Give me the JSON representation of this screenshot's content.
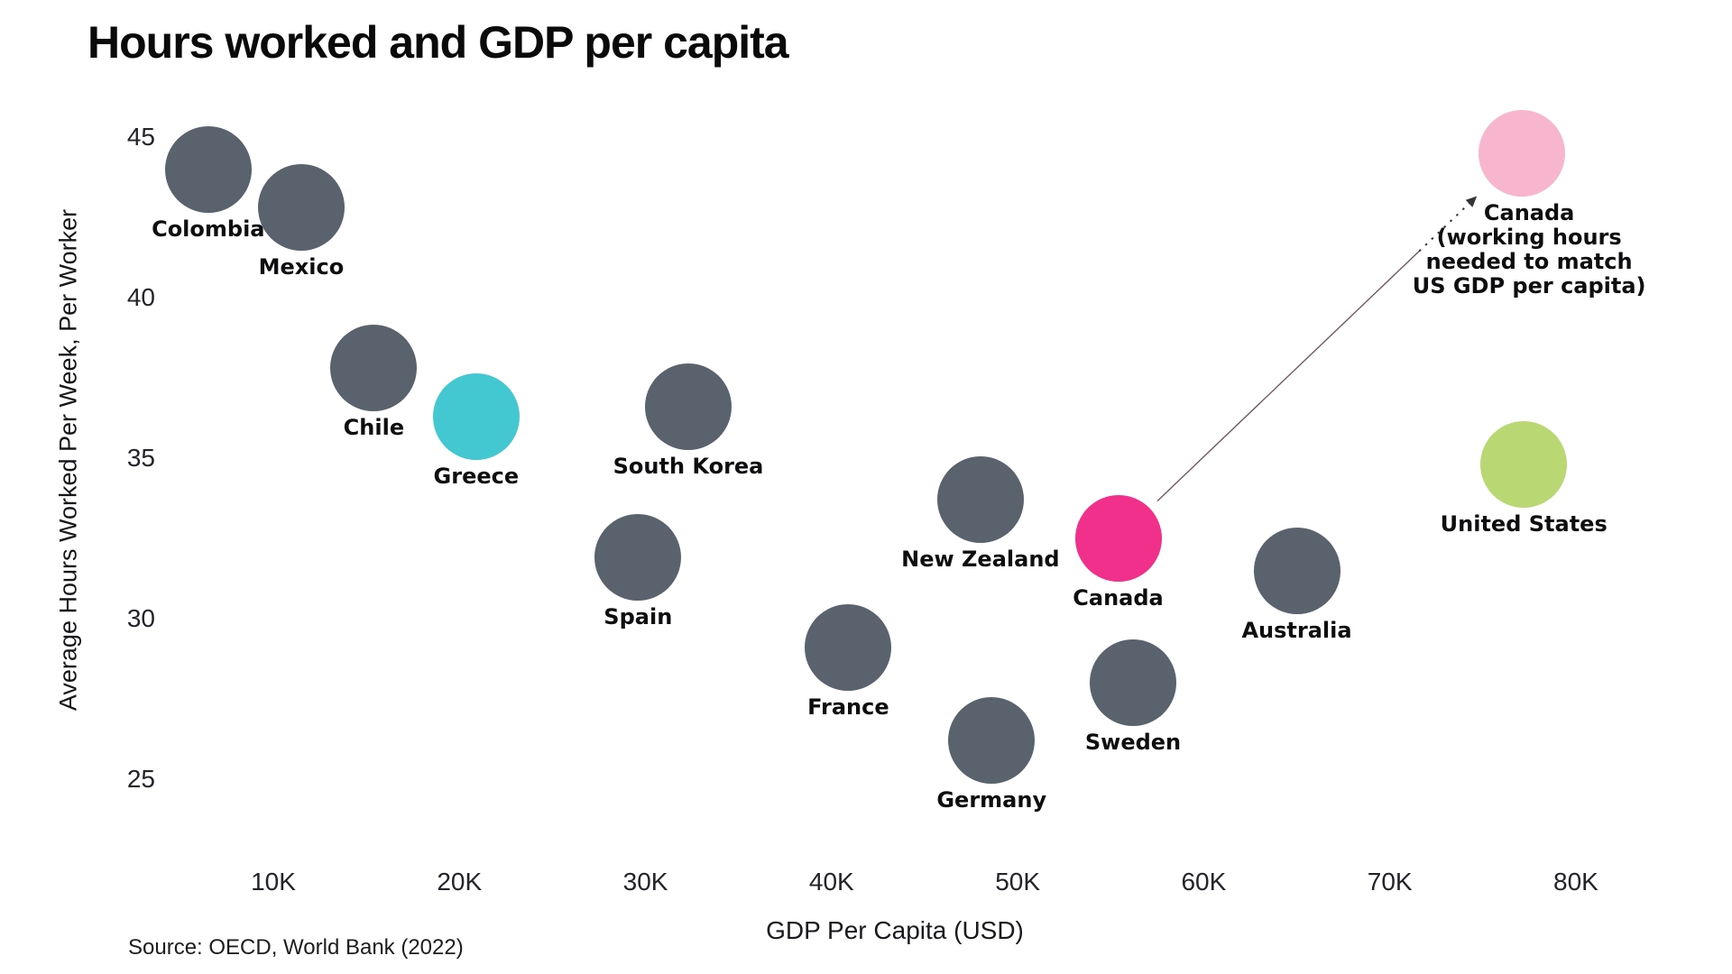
{
  "title": "Hours worked and GDP per capita",
  "source": "Source: OECD, World Bank (2022)",
  "x_axis": {
    "label": "GDP Per Capita (USD)",
    "ticks": [
      "10K",
      "20K",
      "30K",
      "40K",
      "50K",
      "60K",
      "70K",
      "80K"
    ],
    "tick_values": [
      10,
      20,
      30,
      40,
      50,
      60,
      70,
      80
    ]
  },
  "y_axis": {
    "label": "Average Hours Worked Per Week, Per Worker",
    "ticks": [
      "45",
      "40",
      "35",
      "30",
      "25"
    ],
    "tick_values": [
      45,
      40,
      35,
      30,
      25
    ]
  },
  "colors": {
    "dot_default": "#5a626e",
    "greece": "#43c7d1",
    "canada": "#f0308a",
    "us": "#b9d873",
    "canada_hypothetical": "#f7b6ce",
    "arrow_line": "#705a5e",
    "arrow_head": "#33333a",
    "text": "#111111"
  },
  "chart_data": {
    "type": "scatter",
    "title": "Hours worked and GDP per capita",
    "xlabel": "GDP Per Capita (USD)",
    "ylabel": "Average Hours Worked Per Week, Per Worker",
    "x_unit": "USD thousands",
    "x_range_k": [
      3,
      85
    ],
    "y_range_hours": [
      24.5,
      45.5
    ],
    "grid": false,
    "legend": false,
    "points": [
      {
        "id": "colombia",
        "label": "Colombia",
        "gdp_per_capita_k": 6.5,
        "hours": 44.0
      },
      {
        "id": "mexico",
        "label": "Mexico",
        "gdp_per_capita_k": 11.5,
        "hours": 42.8
      },
      {
        "id": "chile",
        "label": "Chile",
        "gdp_per_capita_k": 15.4,
        "hours": 37.8
      },
      {
        "id": "greece",
        "label": "Greece",
        "gdp_per_capita_k": 20.9,
        "hours": 36.3,
        "color_key": "greece"
      },
      {
        "id": "spain",
        "label": "Spain",
        "gdp_per_capita_k": 29.6,
        "hours": 31.9
      },
      {
        "id": "south-korea",
        "label": "South Korea",
        "gdp_per_capita_k": 32.3,
        "hours": 36.6
      },
      {
        "id": "france",
        "label": "France",
        "gdp_per_capita_k": 40.9,
        "hours": 29.1
      },
      {
        "id": "new-zealand",
        "label": "New Zealand",
        "gdp_per_capita_k": 48.0,
        "hours": 33.7
      },
      {
        "id": "germany",
        "label": "Germany",
        "gdp_per_capita_k": 48.6,
        "hours": 26.2
      },
      {
        "id": "canada",
        "label": "Canada",
        "gdp_per_capita_k": 55.4,
        "hours": 32.5,
        "color_key": "canada"
      },
      {
        "id": "sweden",
        "label": "Sweden",
        "gdp_per_capita_k": 56.2,
        "hours": 28.0
      },
      {
        "id": "australia",
        "label": "Australia",
        "gdp_per_capita_k": 65.0,
        "hours": 31.5
      },
      {
        "id": "united-states",
        "label": "United States",
        "gdp_per_capita_k": 77.2,
        "hours": 34.8,
        "color_key": "us"
      },
      {
        "id": "canada-hypothetical",
        "label": "Canada",
        "gdp_per_capita_k": 77.1,
        "hours": 44.5,
        "color_key": "canada_hypothetical",
        "sublabel_lines": [
          "(working hours",
          "needed to match",
          "US GDP per capita)"
        ]
      }
    ],
    "annotation_arrow": {
      "from_id": "canada",
      "to_id": "canada-hypothetical"
    }
  }
}
